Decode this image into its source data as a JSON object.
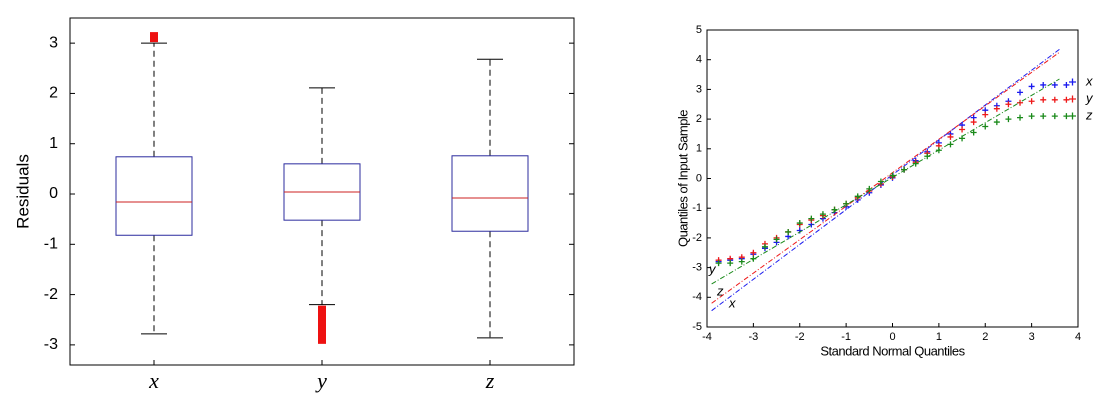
{
  "chart_data": [
    {
      "type": "box",
      "ylabel": "Residuals",
      "categories": [
        "x",
        "y",
        "z"
      ],
      "ylim": [
        -3.4,
        3.5
      ],
      "yticks": [
        -3,
        -2,
        -1,
        0,
        1,
        2,
        3
      ],
      "box_color": "#2b2b9e",
      "median_color": "#cc2222",
      "outlier_color": "#ee1111",
      "boxes": [
        {
          "whisker_low": -2.78,
          "q1": -0.82,
          "median": -0.16,
          "q3": 0.74,
          "whisker_high": 3.0,
          "outliers": [
            3.1,
            3.14
          ]
        },
        {
          "whisker_low": -2.2,
          "q1": -0.52,
          "median": 0.04,
          "q3": 0.6,
          "whisker_high": 2.11,
          "outliers": [
            -2.3,
            -2.4,
            -2.5,
            -2.6,
            -2.7,
            -2.8,
            -2.9
          ]
        },
        {
          "whisker_low": -2.86,
          "q1": -0.74,
          "median": -0.08,
          "q3": 0.76,
          "whisker_high": 2.68,
          "outliers": []
        }
      ]
    },
    {
      "type": "qq",
      "xlabel": "Standard Normal Quantiles",
      "ylabel": "Quantiles of Input Sample",
      "xlim": [
        -4,
        4
      ],
      "ylim": [
        -5,
        5
      ],
      "xticks": [
        -4,
        -3,
        -2,
        -1,
        0,
        1,
        2,
        3,
        4
      ],
      "yticks": [
        -5,
        -4,
        -3,
        -2,
        -1,
        0,
        1,
        2,
        3,
        4,
        5
      ],
      "x": [
        -3.75,
        -3.5,
        -3.25,
        -3,
        -2.75,
        -2.5,
        -2.25,
        -2,
        -1.75,
        -1.5,
        -1.25,
        -1,
        -0.75,
        -0.5,
        -0.25,
        0,
        0.25,
        0.5,
        0.75,
        1,
        1.25,
        1.5,
        1.75,
        2,
        2.25,
        2.5,
        2.75,
        3,
        3.25,
        3.5,
        3.75
      ],
      "series": [
        {
          "name": "x",
          "color": "#1a1aee",
          "values": [
            -2.8,
            -2.75,
            -2.7,
            -2.55,
            -2.35,
            -2.15,
            -1.95,
            -1.75,
            -1.55,
            -1.35,
            -1.15,
            -0.95,
            -0.72,
            -0.48,
            -0.22,
            0.02,
            0.3,
            0.6,
            0.9,
            1.2,
            1.5,
            1.8,
            2.05,
            2.3,
            2.45,
            2.6,
            2.9,
            3.1,
            3.15,
            3.15,
            3.15
          ],
          "ref_x": [
            -3.9,
            3.6
          ],
          "ref_y": [
            -4.45,
            4.35
          ]
        },
        {
          "name": "y",
          "color": "#ee1a1a",
          "values": [
            -2.75,
            -2.7,
            -2.65,
            -2.5,
            -2.2,
            -2.0,
            -1.8,
            -1.55,
            -1.4,
            -1.25,
            -1.05,
            -0.85,
            -0.65,
            -0.42,
            -0.18,
            0.05,
            0.3,
            0.55,
            0.85,
            1.1,
            1.4,
            1.65,
            1.9,
            2.15,
            2.35,
            2.5,
            2.55,
            2.6,
            2.65,
            2.65,
            2.65
          ],
          "ref_x": [
            -3.9,
            3.6
          ],
          "ref_y": [
            -4.2,
            4.25
          ]
        },
        {
          "name": "z",
          "color": "#1a8a1a",
          "values": [
            -2.85,
            -2.85,
            -2.8,
            -2.7,
            -2.3,
            -2.05,
            -1.8,
            -1.5,
            -1.35,
            -1.2,
            -1.05,
            -0.85,
            -0.6,
            -0.35,
            -0.1,
            0.1,
            0.3,
            0.5,
            0.75,
            0.95,
            1.15,
            1.35,
            1.55,
            1.75,
            1.9,
            2.0,
            2.05,
            2.1,
            2.1,
            2.1,
            2.1
          ],
          "ref_x": [
            -3.9,
            3.6
          ],
          "ref_y": [
            -3.55,
            3.35
          ]
        }
      ]
    }
  ]
}
